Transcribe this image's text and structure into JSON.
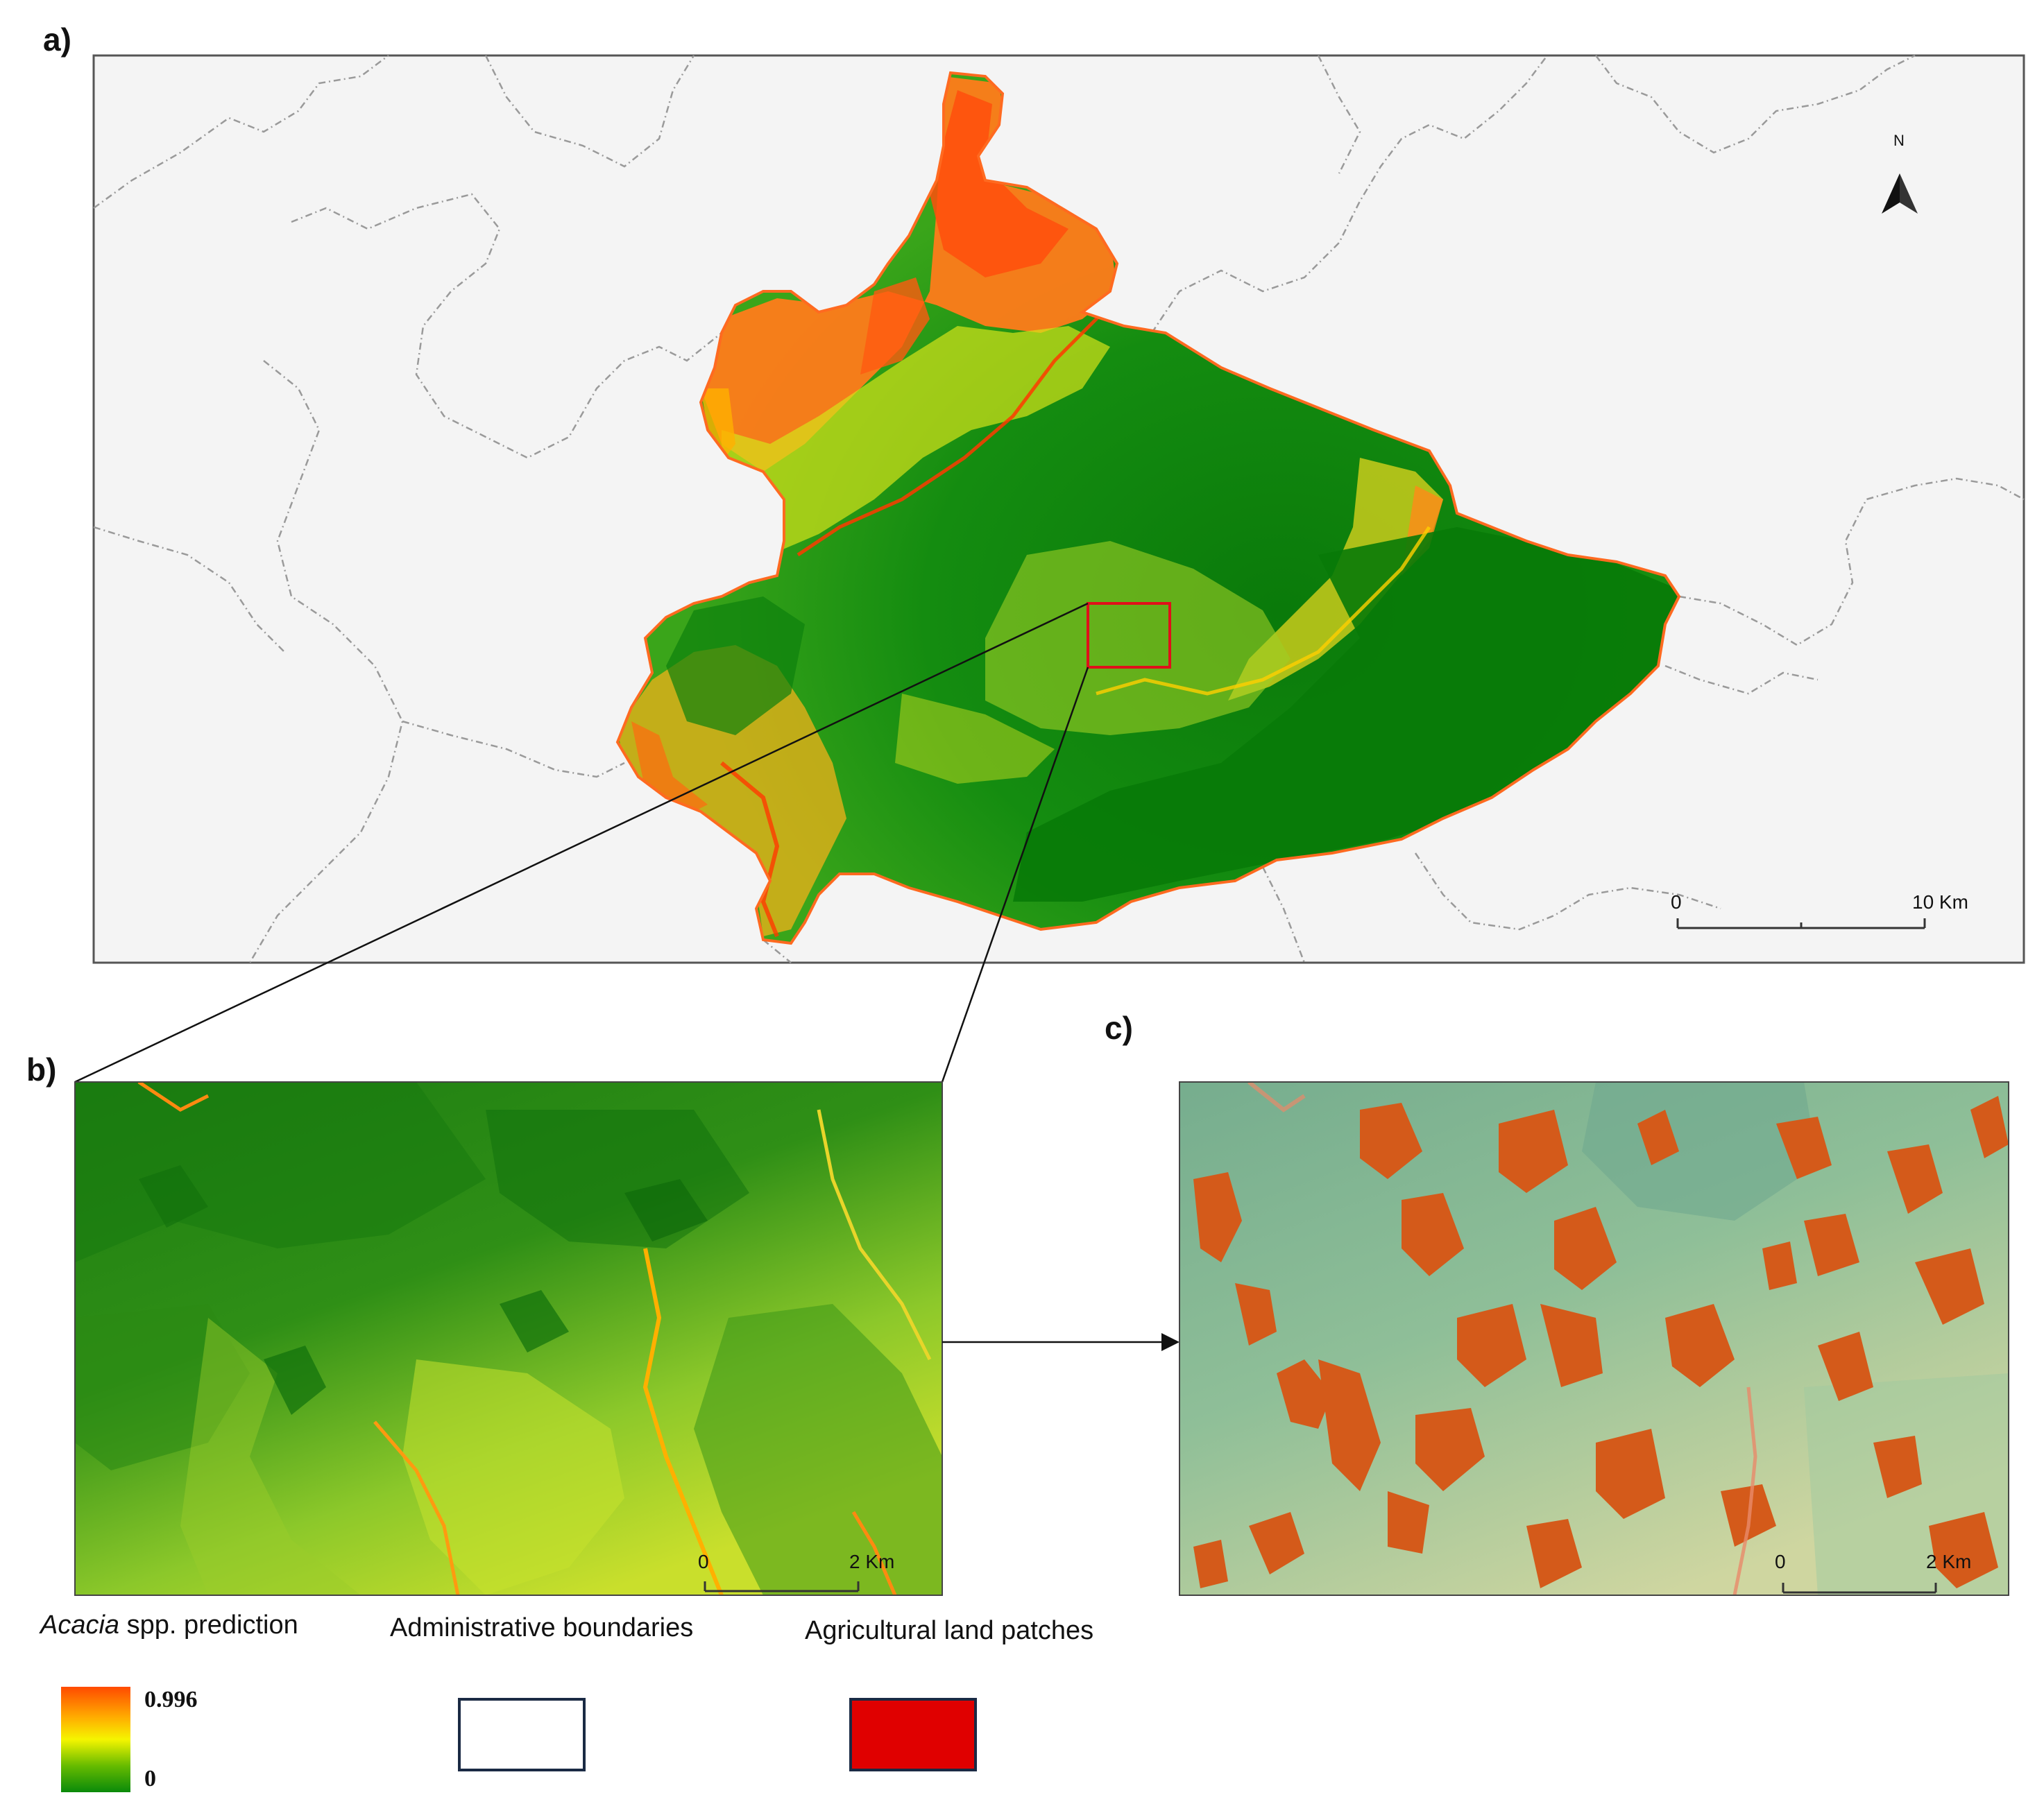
{
  "panels": {
    "a": {
      "label": "a)",
      "north_label": "N",
      "scale_start": "0",
      "scale_end": "10 Km"
    },
    "b": {
      "label": "b)",
      "scale_start": "0",
      "scale_end": "2 Km"
    },
    "c": {
      "label": "c)",
      "scale_start": "0",
      "scale_end": "2 Km"
    }
  },
  "legend": {
    "prediction": {
      "title_italic": "Acacia",
      "title_rest": " spp. prediction",
      "max": "0.996",
      "min": "0"
    },
    "boundaries": {
      "title": "Administrative boundaries"
    },
    "patches": {
      "title": "Agricultural land patches"
    }
  },
  "colors": {
    "prediction_high": "#ff3b00",
    "prediction_mid": "#f7f700",
    "prediction_low": "#0b8a0b",
    "patches": "#e00000",
    "boundary_swatch_border": "#1a2a44"
  }
}
